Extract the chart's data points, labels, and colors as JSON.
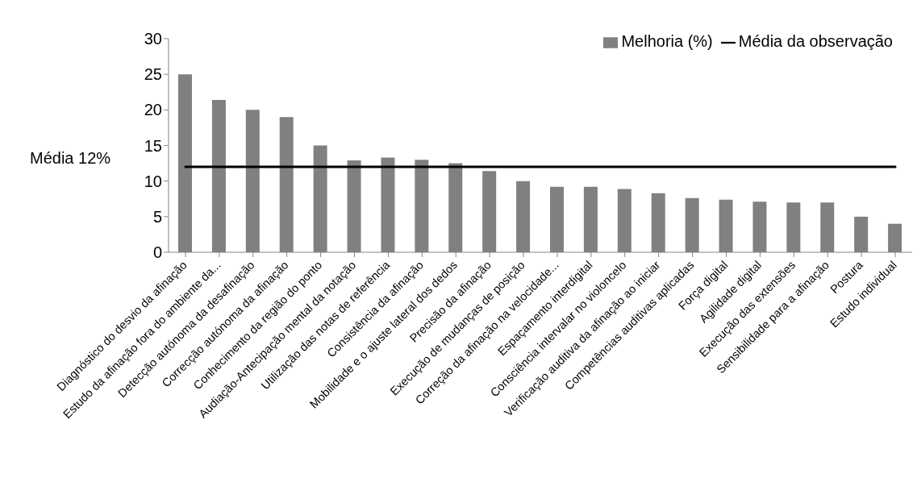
{
  "chart_data": {
    "type": "bar",
    "categories": [
      "Diagnóstico do desvio da afinação",
      "Estudo da afinação fora do ambiente da...",
      "Detecção autónoma da desafinação",
      "Correcção autónoma da afinação",
      "Conhecimento da região do ponto",
      "Audiação-Antecipação mental da notação",
      "Utilização das notas de referência",
      "Consistência da afinação",
      "Mobilidade e o ajuste lateral dos dedos",
      "Precisão da afinação",
      "Execução de mudanças de posição",
      "Correção da afinação na velocidade...",
      "Espaçamento interdigital",
      "Consciência intervalar no violoncelo",
      "Verificação auditiva da afinação ao iniciar",
      "Competências auditivas aplicadas",
      "Força digital",
      "Agilidade digital",
      "Execução das extensões",
      "Sensibilidade para a afinação",
      "Postura",
      "Estudo individual"
    ],
    "series": [
      {
        "name": "Melhoria (%)",
        "color": "#808080",
        "values": [
          25,
          21.4,
          20,
          19,
          15,
          12.9,
          13.3,
          13,
          12.5,
          11.4,
          10,
          9.2,
          9.2,
          8.9,
          8.3,
          7.6,
          7.4,
          7.1,
          7,
          7,
          5,
          4
        ]
      },
      {
        "name": "Média da observação",
        "type": "line",
        "color": "#000000",
        "values": [
          12,
          12,
          12,
          12,
          12,
          12,
          12,
          12,
          12,
          12,
          12,
          12,
          12,
          12,
          12,
          12,
          12,
          12,
          12,
          12,
          12,
          12
        ]
      }
    ],
    "annotations": [
      "Média 12%"
    ],
    "ylim": [
      0,
      30
    ],
    "yticks": [
      0,
      5,
      10,
      15,
      20,
      25,
      30
    ],
    "grid": false,
    "legend": "top right",
    "marker": "none"
  }
}
